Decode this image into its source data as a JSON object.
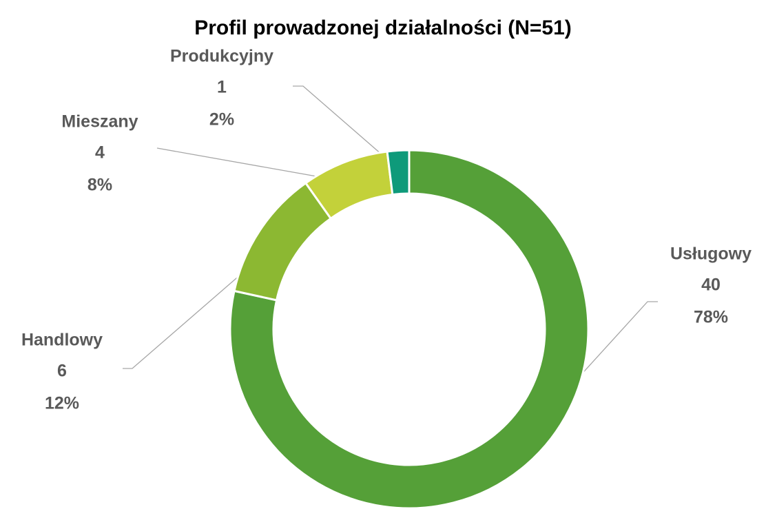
{
  "chart_data": {
    "type": "donut",
    "title": "Profil prowadzonej działalności (N=51)",
    "categories": [
      "Usługowy",
      "Handlowy",
      "Mieszany",
      "Produkcyjny"
    ],
    "values": [
      40,
      6,
      4,
      1
    ],
    "percent_labels": [
      "78%",
      "12%",
      "8%",
      "2%"
    ],
    "colors": [
      "#55a038",
      "#8cb832",
      "#c3d13a",
      "#0e9a7a"
    ]
  }
}
